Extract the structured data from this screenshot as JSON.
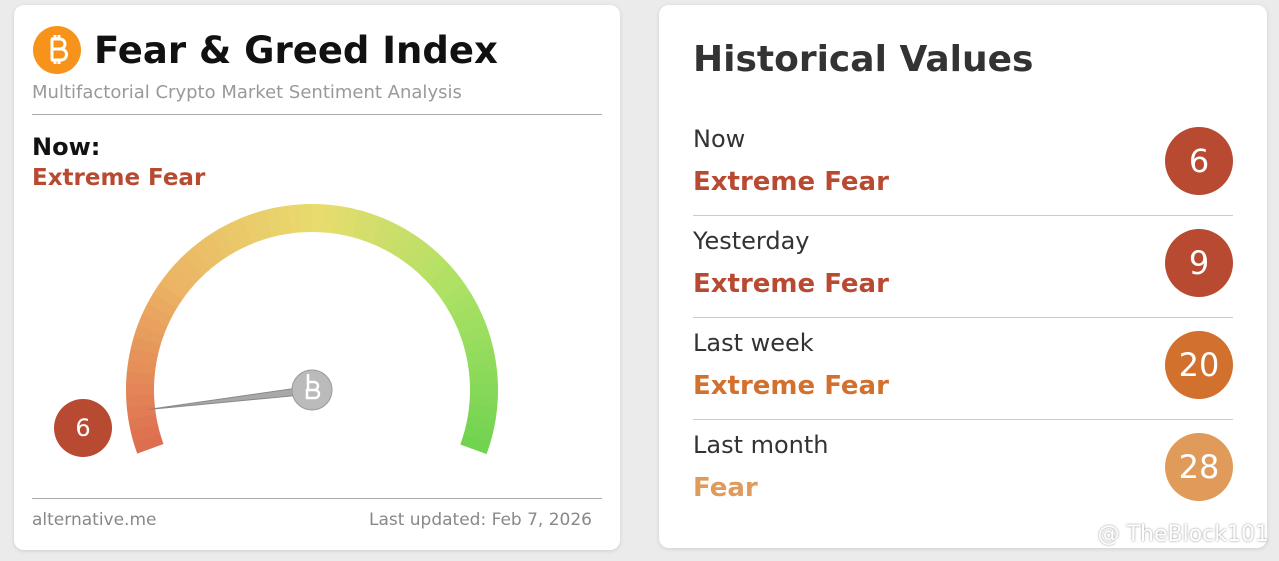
{
  "fear_greed_card": {
    "title": "Fear & Greed Index",
    "subtitle": "Multifactorial Crypto Market Sentiment Analysis",
    "now_label": "Now:",
    "now_status": "Extreme Fear",
    "status_color": "#b84a32",
    "gauge": {
      "value": 6,
      "range": [
        0,
        100
      ]
    },
    "footer_source": "alternative.me",
    "footer_updated": "Last updated: Feb 7, 2026"
  },
  "historical_card": {
    "title": "Historical Values",
    "rows": [
      {
        "label": "Now",
        "status": "Extreme Fear",
        "value": 6,
        "color": "#b84a32"
      },
      {
        "label": "Yesterday",
        "status": "Extreme Fear",
        "value": 9,
        "color": "#b84a32"
      },
      {
        "label": "Last week",
        "status": "Extreme Fear",
        "value": 20,
        "color": "#d2702e"
      },
      {
        "label": "Last month",
        "status": "Fear",
        "value": 28,
        "color": "#e09a5a"
      }
    ]
  },
  "watermark": "@ TheBlock101"
}
